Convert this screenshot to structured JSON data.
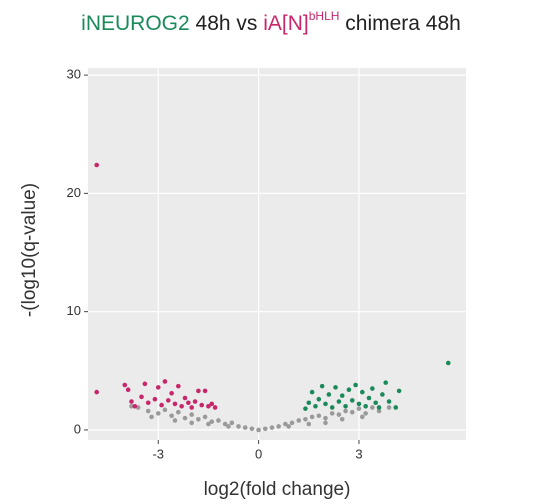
{
  "chart_data": {
    "type": "scatter",
    "title_parts": [
      {
        "text": "iNEUROG2",
        "color": "#1b8a5a"
      },
      {
        "text": " 48h vs ",
        "color": "#222222"
      },
      {
        "text": "iA[N]",
        "color": "#c8266a"
      },
      {
        "text": "bHLH",
        "color": "#c8266a",
        "superscript": true
      },
      {
        "text": " chimera 48h",
        "color": "#222222"
      }
    ],
    "x_label": "log2(fold change)",
    "y_label": "-(log10(q-value)",
    "xlim": [
      -5.1,
      6.2
    ],
    "ylim": [
      -0.85,
      30.6
    ],
    "xticks": [
      -3,
      0,
      3
    ],
    "yticks": [
      0,
      10,
      20,
      30
    ],
    "grid": true,
    "series": [
      {
        "color": "#9a9a9a",
        "x": [
          -3.6,
          -3.3,
          -3,
          -2.8,
          -2.6,
          -2.4,
          -2.2,
          -2,
          -1.8,
          -1.6,
          -1.4,
          -1.2,
          -1,
          -0.8,
          -0.6,
          -0.4,
          -0.2,
          0,
          0.2,
          0.4,
          0.6,
          0.8,
          1,
          1.2,
          1.4,
          1.6,
          1.8,
          2,
          2.2,
          2.4,
          2.6,
          2.8,
          3,
          3.2,
          3.4,
          3.6,
          -2.5,
          -1.5,
          1.5,
          2.5,
          -3.2,
          3.1,
          -0.9,
          0.9,
          -2,
          2,
          -3.8,
          3.9
        ],
        "y": [
          1.9,
          1.6,
          1.4,
          1.7,
          1.2,
          1.5,
          1.0,
          1.3,
          0.9,
          1.1,
          0.7,
          0.8,
          0.5,
          0.6,
          0.3,
          0.2,
          0.1,
          0,
          0.1,
          0.2,
          0.3,
          0.5,
          0.6,
          0.8,
          0.9,
          1.1,
          1.2,
          1.0,
          1.4,
          1.3,
          1.6,
          1.5,
          1.8,
          1.4,
          1.9,
          1.6,
          0.8,
          0.5,
          0.5,
          0.9,
          1.1,
          1.1,
          0.3,
          0.3,
          0.6,
          0.6,
          2.0,
          1.9
        ]
      },
      {
        "color": "#c8266a",
        "x": [
          -4.84,
          -4.84,
          -4.0,
          -3.9,
          -3.8,
          -3.7,
          -3.5,
          -3.4,
          -3.3,
          -3.1,
          -3.0,
          -2.9,
          -2.8,
          -2.7,
          -2.6,
          -2.5,
          -2.4,
          -2.3,
          -2.2,
          -2.1,
          -2.0,
          -1.9,
          -1.8,
          -1.7,
          -1.6,
          -1.5,
          -1.4,
          -1.3
        ],
        "y": [
          22.4,
          3.2,
          3.8,
          3.4,
          2.4,
          2.0,
          2.8,
          3.9,
          2.3,
          2.6,
          3.6,
          2.1,
          4.1,
          2.5,
          3.1,
          2.2,
          3.7,
          2.0,
          2.7,
          2.3,
          1.9,
          2.4,
          3.3,
          2.1,
          3.3,
          2.0,
          2.2,
          1.9
        ]
      },
      {
        "color": "#1b8a5a",
        "x": [
          5.67,
          1.4,
          1.5,
          1.6,
          1.7,
          1.8,
          1.9,
          2.0,
          2.1,
          2.2,
          2.3,
          2.4,
          2.5,
          2.6,
          2.7,
          2.8,
          2.9,
          3.0,
          3.1,
          3.2,
          3.3,
          3.4,
          3.5,
          3.6,
          3.7,
          3.8,
          3.9,
          4.2,
          4.1
        ],
        "y": [
          5.66,
          1.8,
          2.3,
          3.2,
          2.0,
          2.6,
          3.7,
          2.2,
          3.0,
          1.9,
          3.6,
          2.4,
          2.9,
          2.0,
          3.4,
          2.5,
          3.8,
          2.2,
          3.2,
          2.0,
          2.7,
          3.5,
          2.3,
          1.9,
          3.0,
          4.0,
          2.4,
          3.3,
          1.9
        ]
      }
    ]
  }
}
